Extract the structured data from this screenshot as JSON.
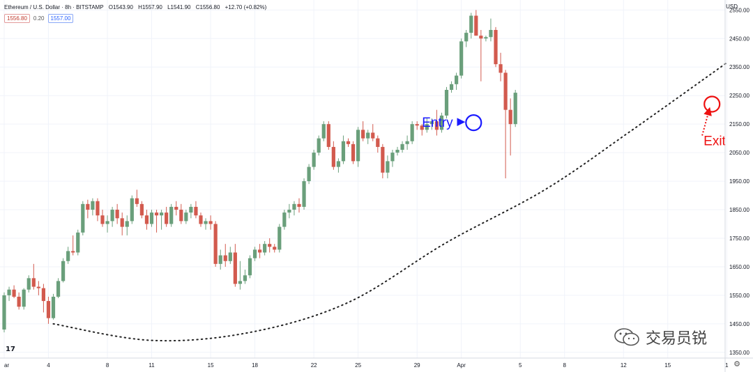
{
  "header": {
    "symbol": "Ethereum / U.S. Dollar · 8h · BITSTAMP",
    "open": "O1543.90",
    "high": "H1557.90",
    "low": "L1541.90",
    "close": "C1556.80",
    "change": "+12.70 (+0.82%)",
    "sell_price": "1556.80",
    "spread": "0.20",
    "buy_price": "1557.00"
  },
  "currency": "USD",
  "watermark": "交易员锐",
  "colors": {
    "up": "#6a9f7b",
    "down": "#d25a4e",
    "entry": "#1a1aff",
    "exit": "#ee1111",
    "grid": "#f0f3fa"
  },
  "chart_data": {
    "type": "candlestick",
    "yticks": [
      2550,
      2450,
      2350,
      2250,
      2150,
      2050,
      1950,
      1850,
      1750,
      1650,
      1550,
      1450,
      1350
    ],
    "ylim": [
      1330,
      2585
    ],
    "xticks": [
      {
        "label": "ar",
        "t": 0
      },
      {
        "label": "4",
        "t": 9
      },
      {
        "label": "8",
        "t": 21
      },
      {
        "label": "11",
        "t": 30
      },
      {
        "label": "15",
        "t": 42
      },
      {
        "label": "18",
        "t": 51
      },
      {
        "label": "22",
        "t": 63
      },
      {
        "label": "25",
        "t": 72
      },
      {
        "label": "29",
        "t": 84
      },
      {
        "label": "Apr",
        "t": 93
      },
      {
        "label": "5",
        "t": 105
      },
      {
        "label": "8",
        "t": 114
      },
      {
        "label": "12",
        "t": 126
      },
      {
        "label": "15",
        "t": 135
      },
      {
        "label": "1",
        "t": 147
      }
    ],
    "candles": [
      [
        1430,
        1560,
        1420,
        1550
      ],
      [
        1550,
        1580,
        1530,
        1570
      ],
      [
        1570,
        1585,
        1540,
        1545
      ],
      [
        1545,
        1560,
        1500,
        1510
      ],
      [
        1510,
        1575,
        1500,
        1570
      ],
      [
        1570,
        1620,
        1560,
        1610
      ],
      [
        1610,
        1660,
        1570,
        1580
      ],
      [
        1580,
        1600,
        1550,
        1575
      ],
      [
        1575,
        1590,
        1490,
        1530
      ],
      [
        1530,
        1545,
        1450,
        1470
      ],
      [
        1470,
        1555,
        1465,
        1545
      ],
      [
        1545,
        1610,
        1540,
        1600
      ],
      [
        1600,
        1680,
        1595,
        1670
      ],
      [
        1670,
        1720,
        1660,
        1705
      ],
      [
        1705,
        1760,
        1690,
        1700
      ],
      [
        1700,
        1780,
        1690,
        1770
      ],
      [
        1770,
        1880,
        1760,
        1870
      ],
      [
        1870,
        1885,
        1820,
        1850
      ],
      [
        1850,
        1890,
        1830,
        1880
      ],
      [
        1880,
        1890,
        1810,
        1830
      ],
      [
        1830,
        1850,
        1790,
        1800
      ],
      [
        1800,
        1830,
        1770,
        1810
      ],
      [
        1810,
        1860,
        1790,
        1850
      ],
      [
        1850,
        1870,
        1800,
        1820
      ],
      [
        1820,
        1840,
        1760,
        1790
      ],
      [
        1790,
        1830,
        1760,
        1810
      ],
      [
        1810,
        1900,
        1800,
        1890
      ],
      [
        1890,
        1920,
        1860,
        1870
      ],
      [
        1870,
        1880,
        1820,
        1830
      ],
      [
        1830,
        1850,
        1780,
        1800
      ],
      [
        1800,
        1850,
        1790,
        1840
      ],
      [
        1840,
        1850,
        1770,
        1830
      ],
      [
        1830,
        1850,
        1780,
        1840
      ],
      [
        1840,
        1860,
        1790,
        1800
      ],
      [
        1800,
        1870,
        1790,
        1860
      ],
      [
        1860,
        1880,
        1830,
        1850
      ],
      [
        1850,
        1870,
        1800,
        1810
      ],
      [
        1810,
        1850,
        1800,
        1840
      ],
      [
        1840,
        1870,
        1820,
        1860
      ],
      [
        1860,
        1880,
        1820,
        1830
      ],
      [
        1830,
        1840,
        1790,
        1800
      ],
      [
        1800,
        1820,
        1780,
        1810
      ],
      [
        1810,
        1830,
        1780,
        1800
      ],
      [
        1800,
        1810,
        1650,
        1660
      ],
      [
        1660,
        1710,
        1640,
        1690
      ],
      [
        1690,
        1730,
        1650,
        1670
      ],
      [
        1670,
        1720,
        1660,
        1700
      ],
      [
        1700,
        1730,
        1580,
        1590
      ],
      [
        1590,
        1670,
        1570,
        1600
      ],
      [
        1600,
        1640,
        1590,
        1620
      ],
      [
        1620,
        1690,
        1610,
        1680
      ],
      [
        1680,
        1720,
        1670,
        1710
      ],
      [
        1710,
        1730,
        1680,
        1700
      ],
      [
        1700,
        1740,
        1690,
        1730
      ],
      [
        1730,
        1750,
        1700,
        1720
      ],
      [
        1720,
        1730,
        1700,
        1710
      ],
      [
        1710,
        1800,
        1700,
        1790
      ],
      [
        1790,
        1850,
        1780,
        1840
      ],
      [
        1840,
        1870,
        1820,
        1850
      ],
      [
        1850,
        1880,
        1830,
        1870
      ],
      [
        1870,
        1890,
        1840,
        1860
      ],
      [
        1860,
        1960,
        1850,
        1950
      ],
      [
        1950,
        2010,
        1940,
        2000
      ],
      [
        2000,
        2060,
        1990,
        2050
      ],
      [
        2050,
        2110,
        2040,
        2100
      ],
      [
        2100,
        2160,
        2090,
        2150
      ],
      [
        2150,
        2160,
        2060,
        2070
      ],
      [
        2070,
        2090,
        1990,
        2000
      ],
      [
        2000,
        2030,
        1980,
        2020
      ],
      [
        2020,
        2110,
        2010,
        2090
      ],
      [
        2090,
        2100,
        2070,
        2080
      ],
      [
        2080,
        2090,
        2010,
        2020
      ],
      [
        2020,
        2140,
        2000,
        2130
      ],
      [
        2130,
        2160,
        2090,
        2100
      ],
      [
        2100,
        2130,
        2080,
        2120
      ],
      [
        2120,
        2150,
        2090,
        2100
      ],
      [
        2100,
        2110,
        2050,
        2070
      ],
      [
        2070,
        2080,
        1960,
        1980
      ],
      [
        1980,
        2040,
        1960,
        2020
      ],
      [
        2020,
        2060,
        2000,
        2050
      ],
      [
        2050,
        2070,
        2040,
        2060
      ],
      [
        2060,
        2090,
        2050,
        2080
      ],
      [
        2080,
        2110,
        2060,
        2090
      ],
      [
        2090,
        2160,
        2080,
        2150
      ],
      [
        2150,
        2160,
        2130,
        2145
      ],
      [
        2145,
        2150,
        2110,
        2130
      ],
      [
        2130,
        2170,
        2120,
        2150
      ],
      [
        2150,
        2170,
        2130,
        2160
      ],
      [
        2160,
        2200,
        2110,
        2130
      ],
      [
        2130,
        2190,
        2120,
        2180
      ],
      [
        2180,
        2280,
        2170,
        2270
      ],
      [
        2270,
        2300,
        2260,
        2290
      ],
      [
        2290,
        2330,
        2270,
        2320
      ],
      [
        2320,
        2450,
        2310,
        2440
      ],
      [
        2440,
        2480,
        2420,
        2470
      ],
      [
        2470,
        2540,
        2450,
        2530
      ],
      [
        2530,
        2550,
        2460,
        2460
      ],
      [
        2460,
        2480,
        2300,
        2450
      ],
      [
        2450,
        2460,
        2440,
        2455
      ],
      [
        2455,
        2520,
        2440,
        2480
      ],
      [
        2480,
        2490,
        2350,
        2360
      ],
      [
        2360,
        2400,
        2300,
        2330
      ],
      [
        2330,
        2340,
        1960,
        2200
      ],
      [
        2200,
        2240,
        2040,
        2150
      ],
      [
        2150,
        2270,
        2140,
        2260
      ]
    ],
    "annotations": [
      {
        "type": "text",
        "label": "Entry",
        "color": "#1a1aff",
        "t": 85,
        "y": 2155
      },
      {
        "type": "text",
        "label": "Exit",
        "color": "#ee1111",
        "t": 143,
        "y": 2090
      },
      {
        "type": "circle",
        "t": 95.5,
        "y": 2155,
        "color": "#1a1aff"
      },
      {
        "type": "circle",
        "t": 144,
        "y": 2220,
        "color": "#ee1111"
      }
    ],
    "trendline": [
      [
        10,
        1450
      ],
      [
        30,
        1392
      ],
      [
        50,
        1420
      ],
      [
        70,
        1525
      ],
      [
        90,
        1735
      ],
      [
        110,
        1920
      ],
      [
        127,
        2120
      ],
      [
        147,
        2365
      ]
    ]
  }
}
